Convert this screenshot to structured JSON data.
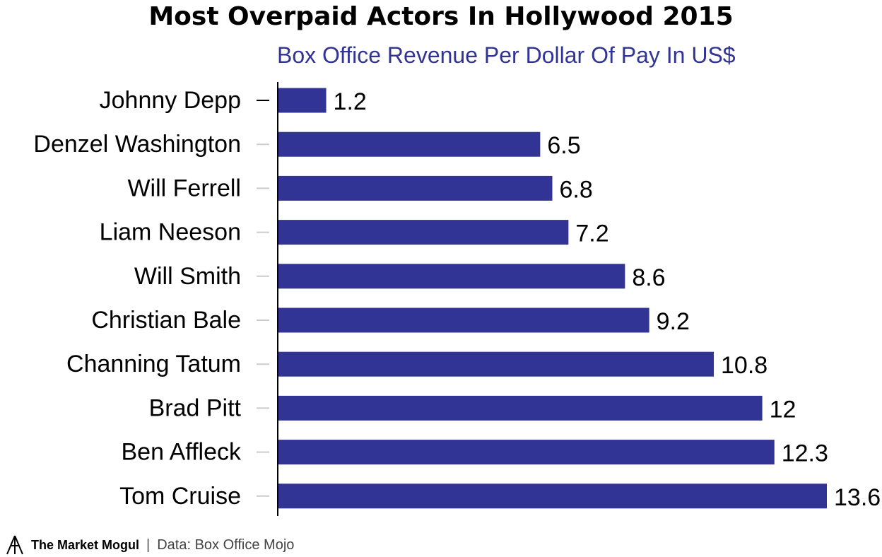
{
  "title": "Most Overpaid Actors In Hollywood 2015",
  "subtitle": "Box Office Revenue Per Dollar Of Pay In US$",
  "footer": {
    "brand": "The Market Mogul",
    "separator": "|",
    "source": "Data: Box Office Mojo"
  },
  "colors": {
    "bar": "#313494",
    "subtitle": "#313494",
    "text": "#000000",
    "axis": "#000000",
    "tick": "#cccccc"
  },
  "chart_data": {
    "type": "bar",
    "orientation": "horizontal",
    "categories": [
      "Johnny Depp",
      "Denzel Washington",
      "Will Ferrell",
      "Liam Neeson",
      "Will Smith",
      "Christian Bale",
      "Channing Tatum",
      "Brad Pitt",
      "Ben Affleck",
      "Tom Cruise"
    ],
    "values": [
      1.2,
      6.5,
      6.8,
      7.2,
      8.6,
      9.2,
      10.8,
      12,
      12.3,
      13.6
    ],
    "value_labels": [
      "1.2",
      "6.5",
      "6.8",
      "7.2",
      "8.6",
      "9.2",
      "10.8",
      "12",
      "12.3",
      "13.6"
    ],
    "xlim": [
      0,
      13.6
    ],
    "grid": false,
    "legend": "none"
  }
}
